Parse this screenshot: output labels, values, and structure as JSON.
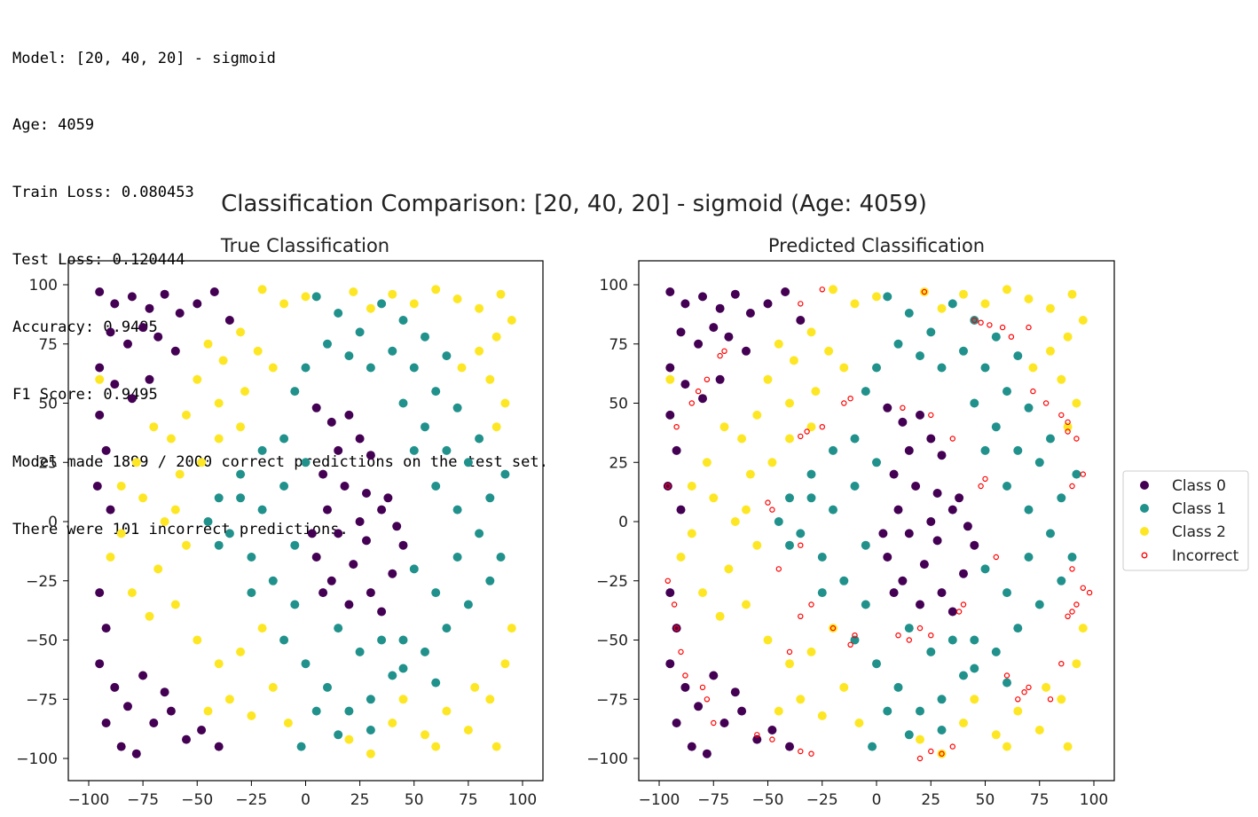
{
  "console": {
    "lines": [
      "Model: [20, 40, 20] - sigmoid",
      "Age: 4059",
      "Train Loss: 0.080453",
      "Test Loss: 0.120444",
      "Accuracy: 0.9495",
      "F1 Score: 0.9495",
      "Model made 1899 / 2000 correct predictions on the test set.",
      "There were 101 incorrect predictions."
    ]
  },
  "colors": {
    "class0": "#440154",
    "class1": "#21918c",
    "class2": "#fde725",
    "incorrect": "#ff0000"
  },
  "chart_data": {
    "type": "scatter",
    "suptitle": "Classification Comparison: [20, 40, 20] - sigmoid (Age: 4059)",
    "subplots": [
      {
        "title": "True Classification",
        "xlim": [
          -100,
          100
        ],
        "ylim": [
          -100,
          100
        ]
      },
      {
        "title": "Predicted Classification",
        "xlim": [
          -100,
          100
        ],
        "ylim": [
          -100,
          100
        ]
      }
    ],
    "xticks": [
      "−100",
      "−75",
      "−50",
      "−25",
      "0",
      "25",
      "50",
      "75",
      "100"
    ],
    "yticks": [
      "100",
      "75",
      "50",
      "25",
      "0",
      "−25",
      "−50",
      "−75",
      "−100"
    ],
    "legend": {
      "placement": "right",
      "entries": [
        "Class 0",
        "Class 1",
        "Class 2",
        "Incorrect"
      ]
    },
    "true_points": [
      [
        -95,
        97,
        0
      ],
      [
        -88,
        92,
        0
      ],
      [
        -80,
        95,
        0
      ],
      [
        -72,
        90,
        0
      ],
      [
        -65,
        96,
        0
      ],
      [
        -58,
        88,
        0
      ],
      [
        -50,
        92,
        0
      ],
      [
        -42,
        97,
        0
      ],
      [
        -35,
        85,
        0
      ],
      [
        -90,
        80,
        0
      ],
      [
        -82,
        75,
        0
      ],
      [
        -75,
        82,
        0
      ],
      [
        -68,
        78,
        0
      ],
      [
        -60,
        72,
        0
      ],
      [
        -95,
        65,
        0
      ],
      [
        -88,
        58,
        0
      ],
      [
        -80,
        52,
        0
      ],
      [
        -72,
        60,
        0
      ],
      [
        -95,
        45,
        0
      ],
      [
        -92,
        30,
        0
      ],
      [
        -96,
        15,
        0
      ],
      [
        -90,
        5,
        0
      ],
      [
        -95,
        -30,
        0
      ],
      [
        -92,
        -45,
        0
      ],
      [
        -95,
        -60,
        0
      ],
      [
        -88,
        -70,
        0
      ],
      [
        -82,
        -78,
        0
      ],
      [
        -75,
        -65,
        0
      ],
      [
        -70,
        -85,
        0
      ],
      [
        -62,
        -80,
        0
      ],
      [
        -55,
        -92,
        0
      ],
      [
        -48,
        -88,
        0
      ],
      [
        -40,
        -95,
        0
      ],
      [
        -85,
        -95,
        0
      ],
      [
        -78,
        -98,
        0
      ],
      [
        -65,
        -72,
        0
      ],
      [
        -92,
        -85,
        0
      ],
      [
        5,
        48,
        0
      ],
      [
        12,
        42,
        0
      ],
      [
        20,
        45,
        0
      ],
      [
        25,
        35,
        0
      ],
      [
        30,
        28,
        0
      ],
      [
        15,
        30,
        0
      ],
      [
        8,
        20,
        0
      ],
      [
        18,
        15,
        0
      ],
      [
        28,
        12,
        0
      ],
      [
        35,
        5,
        0
      ],
      [
        42,
        -2,
        0
      ],
      [
        38,
        10,
        0
      ],
      [
        25,
        0,
        0
      ],
      [
        15,
        -5,
        0
      ],
      [
        5,
        -15,
        0
      ],
      [
        12,
        -25,
        0
      ],
      [
        22,
        -18,
        0
      ],
      [
        30,
        -30,
        0
      ],
      [
        40,
        -22,
        0
      ],
      [
        45,
        -10,
        0
      ],
      [
        35,
        -38,
        0
      ],
      [
        20,
        -35,
        0
      ],
      [
        8,
        -30,
        0
      ],
      [
        3,
        -5,
        0
      ],
      [
        28,
        -8,
        0
      ],
      [
        10,
        5,
        0
      ],
      [
        -20,
        98,
        2
      ],
      [
        -10,
        92,
        2
      ],
      [
        0,
        95,
        2
      ],
      [
        22,
        97,
        2
      ],
      [
        30,
        90,
        2
      ],
      [
        40,
        96,
        2
      ],
      [
        50,
        92,
        2
      ],
      [
        60,
        98,
        2
      ],
      [
        70,
        94,
        2
      ],
      [
        80,
        90,
        2
      ],
      [
        90,
        96,
        2
      ],
      [
        95,
        85,
        2
      ],
      [
        88,
        78,
        2
      ],
      [
        80,
        72,
        2
      ],
      [
        72,
        65,
        2
      ],
      [
        85,
        60,
        2
      ],
      [
        92,
        50,
        2
      ],
      [
        88,
        40,
        2
      ],
      [
        -45,
        75,
        2
      ],
      [
        -38,
        68,
        2
      ],
      [
        -30,
        80,
        2
      ],
      [
        -22,
        72,
        2
      ],
      [
        -15,
        65,
        2
      ],
      [
        -28,
        55,
        2
      ],
      [
        -40,
        50,
        2
      ],
      [
        -50,
        60,
        2
      ],
      [
        -55,
        45,
        2
      ],
      [
        -62,
        35,
        2
      ],
      [
        -70,
        40,
        2
      ],
      [
        -78,
        25,
        2
      ],
      [
        -85,
        15,
        2
      ],
      [
        -75,
        10,
        2
      ],
      [
        -65,
        0,
        2
      ],
      [
        -55,
        -10,
        2
      ],
      [
        -68,
        -20,
        2
      ],
      [
        -80,
        -30,
        2
      ],
      [
        -72,
        -40,
        2
      ],
      [
        -60,
        -35,
        2
      ],
      [
        -50,
        -50,
        2
      ],
      [
        -40,
        -60,
        2
      ],
      [
        -30,
        -55,
        2
      ],
      [
        -20,
        -45,
        2
      ],
      [
        -35,
        -75,
        2
      ],
      [
        -25,
        -82,
        2
      ],
      [
        -15,
        -70,
        2
      ],
      [
        -8,
        -85,
        2
      ],
      [
        -45,
        -80,
        2
      ],
      [
        -85,
        -5,
        2
      ],
      [
        -58,
        20,
        2
      ],
      [
        -48,
        25,
        2
      ],
      [
        -40,
        35,
        2
      ],
      [
        -30,
        40,
        2
      ],
      [
        -60,
        5,
        2
      ],
      [
        -90,
        -15,
        2
      ],
      [
        20,
        -92,
        2
      ],
      [
        30,
        -98,
        2
      ],
      [
        40,
        -85,
        2
      ],
      [
        55,
        -90,
        2
      ],
      [
        65,
        -80,
        2
      ],
      [
        75,
        -88,
        2
      ],
      [
        85,
        -75,
        2
      ],
      [
        92,
        -60,
        2
      ],
      [
        95,
        -45,
        2
      ],
      [
        88,
        -95,
        2
      ],
      [
        78,
        -70,
        2
      ],
      [
        60,
        -95,
        2
      ],
      [
        45,
        -75,
        2
      ],
      [
        -95,
        60,
        2
      ],
      [
        5,
        95,
        1
      ],
      [
        15,
        88,
        1
      ],
      [
        25,
        80,
        1
      ],
      [
        35,
        92,
        1
      ],
      [
        45,
        85,
        1
      ],
      [
        55,
        78,
        1
      ],
      [
        65,
        70,
        1
      ],
      [
        50,
        65,
        1
      ],
      [
        40,
        72,
        1
      ],
      [
        30,
        65,
        1
      ],
      [
        20,
        70,
        1
      ],
      [
        10,
        75,
        1
      ],
      [
        0,
        65,
        1
      ],
      [
        -5,
        55,
        1
      ],
      [
        60,
        55,
        1
      ],
      [
        70,
        48,
        1
      ],
      [
        80,
        35,
        1
      ],
      [
        75,
        25,
        1
      ],
      [
        65,
        30,
        1
      ],
      [
        55,
        40,
        1
      ],
      [
        45,
        50,
        1
      ],
      [
        50,
        30,
        1
      ],
      [
        60,
        15,
        1
      ],
      [
        70,
        5,
        1
      ],
      [
        80,
        -5,
        1
      ],
      [
        90,
        -15,
        1
      ],
      [
        85,
        -25,
        1
      ],
      [
        75,
        -35,
        1
      ],
      [
        65,
        -45,
        1
      ],
      [
        55,
        -55,
        1
      ],
      [
        45,
        -50,
        1
      ],
      [
        60,
        -30,
        1
      ],
      [
        50,
        -20,
        1
      ],
      [
        70,
        -15,
        1
      ],
      [
        85,
        10,
        1
      ],
      [
        92,
        20,
        1
      ],
      [
        -10,
        35,
        1
      ],
      [
        -20,
        30,
        1
      ],
      [
        -30,
        20,
        1
      ],
      [
        -40,
        10,
        1
      ],
      [
        -45,
        0,
        1
      ],
      [
        -35,
        -5,
        1
      ],
      [
        -25,
        -15,
        1
      ],
      [
        -15,
        -25,
        1
      ],
      [
        -5,
        -35,
        1
      ],
      [
        -20,
        5,
        1
      ],
      [
        -10,
        15,
        1
      ],
      [
        -5,
        -10,
        1
      ],
      [
        -25,
        -30,
        1
      ],
      [
        -10,
        -50,
        1
      ],
      [
        0,
        -60,
        1
      ],
      [
        10,
        -70,
        1
      ],
      [
        20,
        -80,
        1
      ],
      [
        30,
        -75,
        1
      ],
      [
        40,
        -65,
        1
      ],
      [
        25,
        -55,
        1
      ],
      [
        15,
        -45,
        1
      ],
      [
        35,
        -50,
        1
      ],
      [
        5,
        -80,
        1
      ],
      [
        -2,
        -95,
        1
      ],
      [
        15,
        -90,
        1
      ],
      [
        30,
        -88,
        1
      ],
      [
        45,
        -62,
        1
      ],
      [
        60,
        -68,
        1
      ],
      [
        -30,
        10,
        1
      ],
      [
        -40,
        -10,
        1
      ],
      [
        0,
        25,
        1
      ]
    ],
    "incorrect_points": [
      [
        -35,
        92
      ],
      [
        -25,
        98
      ],
      [
        22,
        97
      ],
      [
        45,
        85
      ],
      [
        48,
        84
      ],
      [
        52,
        83
      ],
      [
        -70,
        72
      ],
      [
        -72,
        70
      ],
      [
        -78,
        60
      ],
      [
        -82,
        55
      ],
      [
        -85,
        50
      ],
      [
        -92,
        40
      ],
      [
        -96,
        15
      ],
      [
        -96,
        -25
      ],
      [
        -93,
        -35
      ],
      [
        -92,
        -45
      ],
      [
        -90,
        -55
      ],
      [
        -88,
        -65
      ],
      [
        -80,
        -70
      ],
      [
        -78,
        -75
      ],
      [
        -75,
        -85
      ],
      [
        -55,
        -90
      ],
      [
        -48,
        -92
      ],
      [
        -35,
        -97
      ],
      [
        -30,
        -98
      ],
      [
        -45,
        -20
      ],
      [
        -40,
        -55
      ],
      [
        -35,
        -40
      ],
      [
        -30,
        -35
      ],
      [
        -20,
        -45
      ],
      [
        -10,
        -48
      ],
      [
        -12,
        -52
      ],
      [
        -35,
        -10
      ],
      [
        -48,
        5
      ],
      [
        -50,
        8
      ],
      [
        -32,
        38
      ],
      [
        -35,
        36
      ],
      [
        -25,
        40
      ],
      [
        -15,
        50
      ],
      [
        -12,
        52
      ],
      [
        12,
        48
      ],
      [
        25,
        45
      ],
      [
        35,
        35
      ],
      [
        48,
        15
      ],
      [
        50,
        18
      ],
      [
        55,
        -15
      ],
      [
        40,
        -35
      ],
      [
        38,
        -38
      ],
      [
        25,
        -48
      ],
      [
        20,
        -45
      ],
      [
        15,
        -50
      ],
      [
        10,
        -48
      ],
      [
        65,
        -75
      ],
      [
        68,
        -72
      ],
      [
        60,
        -65
      ],
      [
        70,
        -70
      ],
      [
        80,
        -75
      ],
      [
        85,
        -60
      ],
      [
        88,
        -40
      ],
      [
        90,
        -38
      ],
      [
        92,
        -35
      ],
      [
        95,
        -28
      ],
      [
        98,
        -30
      ],
      [
        90,
        -20
      ],
      [
        88,
        38
      ],
      [
        92,
        35
      ],
      [
        95,
        20
      ],
      [
        90,
        15
      ],
      [
        72,
        55
      ],
      [
        78,
        50
      ],
      [
        85,
        45
      ],
      [
        88,
        42
      ],
      [
        70,
        82
      ],
      [
        62,
        78
      ],
      [
        58,
        82
      ],
      [
        30,
        -98
      ],
      [
        25,
        -97
      ],
      [
        20,
        -100
      ],
      [
        35,
        -95
      ]
    ]
  }
}
